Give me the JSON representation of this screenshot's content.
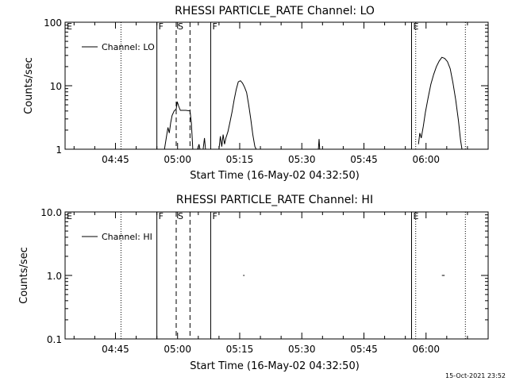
{
  "timestamp": "15-Oct-2021 23:52",
  "chart_data": [
    {
      "type": "line",
      "title": "RHESSI PARTICLE_RATE Channel: LO",
      "xlabel": "Start Time (16-May-02 04:32:50)",
      "ylabel": "Counts/sec",
      "yscale": "log",
      "ylim": [
        1,
        100
      ],
      "xlim": [
        "04:32:50",
        "06:15:00"
      ],
      "ytick_labels": [
        {
          "value": 1,
          "label": "1"
        },
        {
          "value": 10,
          "label": "10"
        },
        {
          "value": 100,
          "label": "100"
        }
      ],
      "xtick_labels": [
        {
          "t": "04:45",
          "label": "04:45"
        },
        {
          "t": "05:00",
          "label": "05:00"
        },
        {
          "t": "05:15",
          "label": "05:15"
        },
        {
          "t": "05:30",
          "label": "05:30"
        },
        {
          "t": "05:45",
          "label": "05:45"
        },
        {
          "t": "06:00",
          "label": "06:00"
        }
      ],
      "legend": {
        "label": "Channel: LO",
        "placement": "top-left"
      },
      "vlines": [
        {
          "t": "04:32:50",
          "style": "solid",
          "label": "E"
        },
        {
          "t": "04:46:20",
          "style": "dotted",
          "label": ""
        },
        {
          "t": "04:55:00",
          "style": "solid",
          "label": "F"
        },
        {
          "t": "04:59:40",
          "style": "dashed",
          "label": "S"
        },
        {
          "t": "05:03:00",
          "style": "dashed",
          "label": ""
        },
        {
          "t": "05:08:00",
          "style": "solid",
          "label": "F"
        },
        {
          "t": "05:56:30",
          "style": "solid",
          "label": "E"
        },
        {
          "t": "05:57:30",
          "style": "dotted",
          "label": ""
        },
        {
          "t": "06:09:30",
          "style": "dotted",
          "label": ""
        }
      ],
      "series": [
        {
          "segments": [
            [
              [
                "04:56:50",
                1
              ],
              [
                "04:57:20",
                1.6
              ],
              [
                "04:57:40",
                2.2
              ],
              [
                "04:58:00",
                1.8
              ],
              [
                "04:58:20",
                2.6
              ],
              [
                "04:58:40",
                3.4
              ],
              [
                "04:59:10",
                4.0
              ],
              [
                "04:59:40",
                4.3
              ],
              [
                "04:59:55",
                5.6
              ],
              [
                "05:00:15",
                4.8
              ],
              [
                "05:00:40",
                4.1
              ],
              [
                "05:02:00",
                4.1
              ],
              [
                "05:03:00",
                4.0
              ],
              [
                "05:03:20",
                2.6
              ],
              [
                "05:03:40",
                1
              ]
            ],
            [
              [
                "05:04:50",
                1
              ],
              [
                "05:05:10",
                1.2
              ],
              [
                "05:05:25",
                1
              ]
            ],
            [
              [
                "05:06:10",
                1
              ],
              [
                "05:06:30",
                1.5
              ],
              [
                "05:06:45",
                1
              ]
            ],
            [
              [
                "05:10:00",
                1
              ],
              [
                "05:10:20",
                1.6
              ],
              [
                "05:10:40",
                1.1
              ],
              [
                "05:11:00",
                1.7
              ],
              [
                "05:11:20",
                1.2
              ],
              [
                "05:11:40",
                1.5
              ],
              [
                "05:12:10",
                1.9
              ],
              [
                "05:12:40",
                2.7
              ],
              [
                "05:13:10",
                3.9
              ],
              [
                "05:13:40",
                6.0
              ],
              [
                "05:14:10",
                8.7
              ],
              [
                "05:14:40",
                11.5
              ],
              [
                "05:15:10",
                12.0
              ],
              [
                "05:15:40",
                11.0
              ],
              [
                "05:16:10",
                9.5
              ],
              [
                "05:16:40",
                7.8
              ],
              [
                "05:17:10",
                5.0
              ],
              [
                "05:17:40",
                3.0
              ],
              [
                "05:18:10",
                1.7
              ],
              [
                "05:18:40",
                1.1
              ],
              [
                "05:19:00",
                1
              ]
            ],
            [
              [
                "05:34:00",
                1
              ],
              [
                "05:34:10",
                1.45
              ],
              [
                "05:34:20",
                1
              ]
            ],
            [
              [
                "05:58:10",
                1.2
              ],
              [
                "05:58:30",
                1.8
              ],
              [
                "05:58:50",
                1.5
              ],
              [
                "05:59:20",
                2.3
              ],
              [
                "05:59:50",
                3.8
              ],
              [
                "06:00:30",
                6.5
              ],
              [
                "06:01:10",
                10.5
              ],
              [
                "06:01:50",
                15.0
              ],
              [
                "06:02:30",
                20.0
              ],
              [
                "06:03:10",
                24.5
              ],
              [
                "06:03:50",
                28.0
              ],
              [
                "06:04:30",
                27.0
              ],
              [
                "06:05:10",
                24.0
              ],
              [
                "06:05:50",
                18.5
              ],
              [
                "06:06:30",
                11.0
              ],
              [
                "06:07:10",
                6.0
              ],
              [
                "06:07:50",
                2.8
              ],
              [
                "06:08:20",
                1.4
              ],
              [
                "06:08:40",
                1
              ]
            ]
          ]
        }
      ]
    },
    {
      "type": "line",
      "title": "RHESSI PARTICLE_RATE Channel: HI",
      "xlabel": "Start Time (16-May-02 04:32:50)",
      "ylabel": "Counts/sec",
      "yscale": "log",
      "ylim": [
        0.1,
        10
      ],
      "xlim": [
        "04:32:50",
        "06:15:00"
      ],
      "ytick_labels": [
        {
          "value": 0.1,
          "label": "0.1"
        },
        {
          "value": 1,
          "label": "1.0"
        },
        {
          "value": 10,
          "label": "10.0"
        }
      ],
      "xtick_labels": [
        {
          "t": "04:45",
          "label": "04:45"
        },
        {
          "t": "05:00",
          "label": "05:00"
        },
        {
          "t": "05:15",
          "label": "05:15"
        },
        {
          "t": "05:30",
          "label": "05:30"
        },
        {
          "t": "05:45",
          "label": "05:45"
        },
        {
          "t": "06:00",
          "label": "06:00"
        }
      ],
      "legend": {
        "label": "Channel: HI",
        "placement": "top-left"
      },
      "vlines": [
        {
          "t": "04:32:50",
          "style": "solid",
          "label": "E"
        },
        {
          "t": "04:46:20",
          "style": "dotted",
          "label": ""
        },
        {
          "t": "04:55:00",
          "style": "solid",
          "label": "F"
        },
        {
          "t": "04:59:40",
          "style": "dashed",
          "label": "S"
        },
        {
          "t": "05:03:00",
          "style": "dashed",
          "label": ""
        },
        {
          "t": "05:08:00",
          "style": "solid",
          "label": "F"
        },
        {
          "t": "05:56:30",
          "style": "solid",
          "label": "E"
        },
        {
          "t": "05:57:30",
          "style": "dotted",
          "label": ""
        },
        {
          "t": "06:09:30",
          "style": "dotted",
          "label": ""
        }
      ],
      "series": [
        {
          "segments": [
            [
              [
                "05:15:50",
                1
              ],
              [
                "05:16:10",
                1
              ]
            ],
            [
              [
                "06:03:50",
                1
              ],
              [
                "06:04:30",
                1
              ]
            ]
          ]
        }
      ]
    }
  ]
}
